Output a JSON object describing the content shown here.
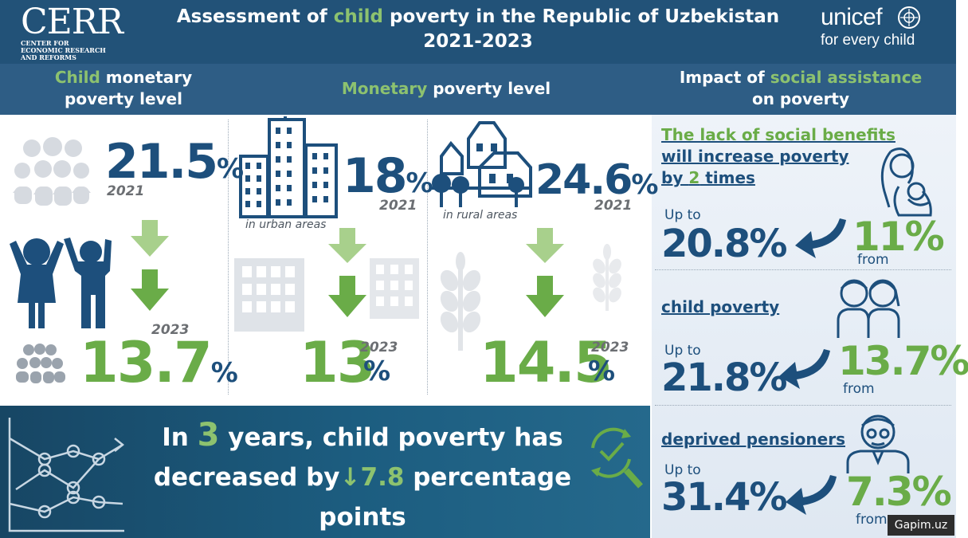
{
  "header": {
    "logo_left": {
      "name": "CERR",
      "subtitle": "CENTER FOR ECONOMIC RESEARCH AND REFORMS"
    },
    "title_pre": "Assessment of ",
    "title_highlight": "child",
    "title_post": " poverty in the Republic of Uzbekistan",
    "title_years": "2021-2023",
    "logo_right": {
      "name": "unicef",
      "tagline": "for every child"
    }
  },
  "columns": {
    "child": {
      "highlight": "Child",
      "rest": " monetary",
      "line2": "poverty level"
    },
    "monetary": {
      "highlight": "Monetary",
      "rest": " poverty level"
    },
    "impact": {
      "line1_pre": "Impact of ",
      "line1_highlight": "social assistance",
      "line2": "on poverty"
    }
  },
  "child_level": {
    "value_2021": "21.5",
    "year_2021": "2021",
    "value_2023": "13.7",
    "year_2023": "2023",
    "unit": "%"
  },
  "urban": {
    "value_2021": "18",
    "year_2021": "2021",
    "value_2023": "13",
    "year_2023": "2023",
    "unit": "%",
    "label": "in urban areas"
  },
  "rural": {
    "value_2021": "24.6",
    "year_2021": "2021",
    "value_2023": "14.5",
    "year_2023": "2023",
    "unit": "%",
    "label": "in rural areas"
  },
  "summary": {
    "line1_pre": "In ",
    "line1_num": "3",
    "line1_post": " years, child poverty has",
    "line2_pre": "decreased by",
    "line2_arrow": "↓",
    "line2_num": "7.8",
    "line2_post": " percentage",
    "line3": "points"
  },
  "impact": {
    "lack": {
      "line1": "The lack of social benefits",
      "line2": "will increase poverty",
      "line3_pre": "by ",
      "line3_num": "2",
      "line3_post": " times",
      "upto_label": "Up to",
      "upto_value": "20.8%",
      "from_value": "11%",
      "from_label": "from"
    },
    "child": {
      "label": "child poverty",
      "upto_label": "Up to",
      "upto_value": "21.8%",
      "from_value": "13.7%",
      "from_label": "from"
    },
    "pensioners": {
      "label": "deprived pensioners",
      "upto_label": "Up to",
      "upto_value": "31.4%",
      "from_value": "7.3%",
      "from_label": "from"
    }
  },
  "watermark": "Gapim.uz",
  "colors": {
    "navy": "#1d4f7c",
    "green": "#6aac48",
    "light_green": "#8dc26f",
    "header_bg": "#225278"
  },
  "icons": [
    "people-group-icon",
    "children-icon",
    "city-buildings-icon",
    "village-houses-icon",
    "wheat-icon",
    "mother-child-icon",
    "kids-icon",
    "pensioner-icon",
    "line-chart-icon",
    "refresh-check-icon",
    "curved-arrow-icon",
    "down-arrow-icon"
  ]
}
